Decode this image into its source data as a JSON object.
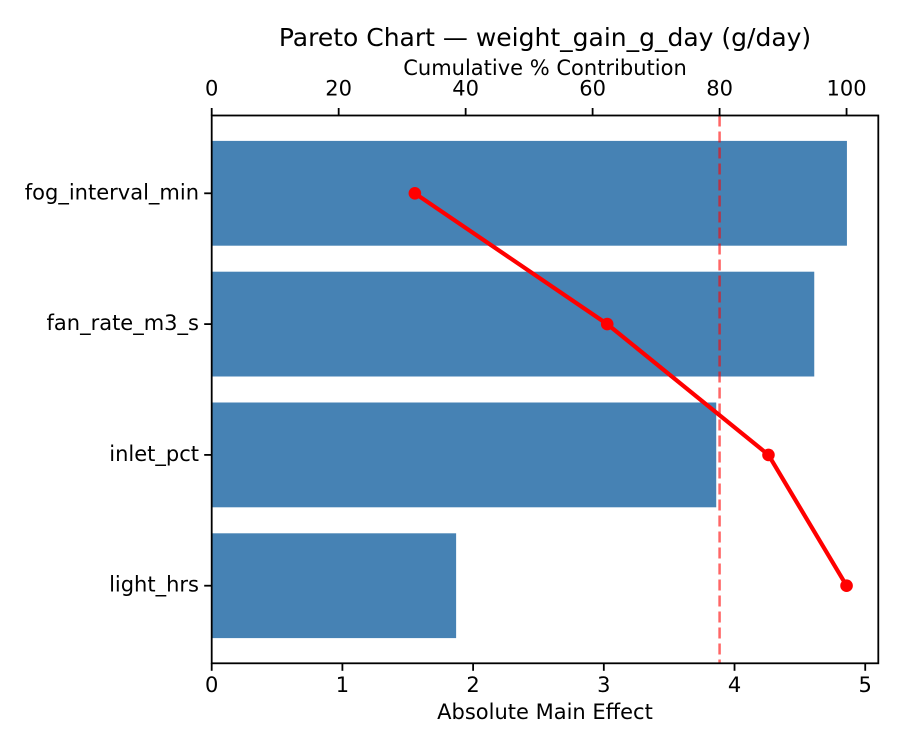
{
  "chart_data": {
    "type": "bar",
    "variant": "pareto",
    "orientation": "horizontal",
    "title": "Pareto Chart — weight_gain_g_day (g/day)",
    "categories": [
      "fog_interval_min",
      "fan_rate_m3_s",
      "inlet_pct",
      "light_hrs"
    ],
    "series": [
      {
        "name": "Absolute Main Effect",
        "type": "bar",
        "values": [
          4.86,
          4.61,
          3.86,
          1.87
        ],
        "color": "#4682b4"
      },
      {
        "name": "Cumulative % Contribution",
        "type": "line",
        "marker": "circle",
        "values": [
          32.0,
          62.3,
          87.7,
          100.0
        ],
        "color": "#ff0000"
      }
    ],
    "axes": {
      "bottom": {
        "label": "Absolute Main Effect",
        "ticks": [
          0,
          1,
          2,
          3,
          4,
          5
        ],
        "lim": [
          0,
          5.1
        ]
      },
      "top": {
        "label": "Cumulative % Contribution",
        "ticks": [
          0,
          20,
          40,
          60,
          80,
          100
        ],
        "lim": [
          0,
          105
        ]
      },
      "left": {
        "ticks": [
          "fog_interval_min",
          "fan_rate_m3_s",
          "inlet_pct",
          "light_hrs"
        ]
      }
    },
    "reference_line": {
      "axis": "top",
      "value": 80,
      "style": "dashed",
      "color": "#ff0000",
      "opacity": 0.6
    },
    "grid": false,
    "legend": null,
    "colors": {
      "bar": "#4682b4",
      "line": "#ff0000",
      "spine": "#000000",
      "text": "#000000",
      "background": "#ffffff"
    }
  }
}
